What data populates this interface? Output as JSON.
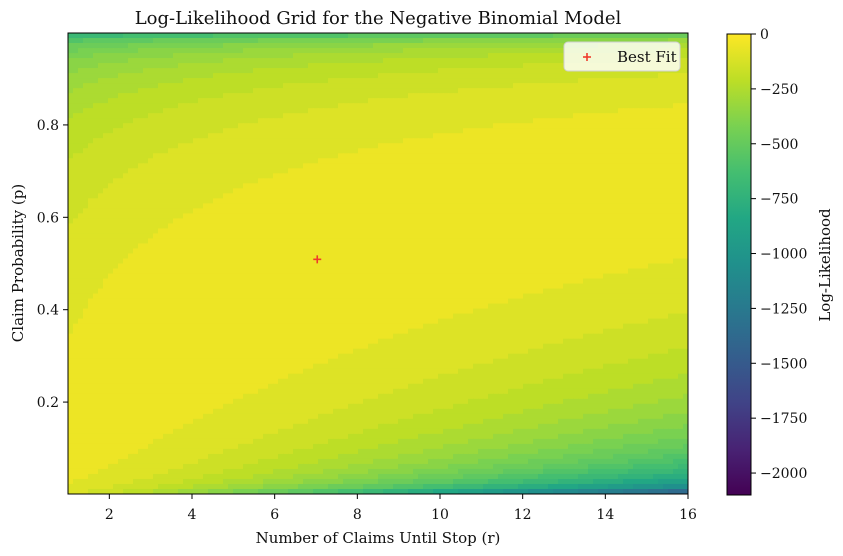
{
  "chart_data": {
    "type": "heatmap",
    "title": "Log-Likelihood Grid for the Negative Binomial Model",
    "xlabel": "Number of Claims Until Stop (r)",
    "ylabel": "Claim Probability (p)",
    "colorbar_label": "Log-Likelihood",
    "xlim": [
      1,
      16
    ],
    "ylim": [
      0.001,
      0.999
    ],
    "x_ticks": [
      2,
      4,
      6,
      8,
      10,
      12,
      14,
      16
    ],
    "x_tick_labels": [
      "2",
      "4",
      "6",
      "8",
      "10",
      "12",
      "14",
      "16"
    ],
    "y_ticks": [
      0.2,
      0.4,
      0.6,
      0.8
    ],
    "y_tick_labels": [
      "0.2",
      "0.4",
      "0.6",
      "0.8"
    ],
    "colorbar": {
      "min": -2100,
      "max": 0,
      "ticks": [
        0,
        -250,
        -500,
        -750,
        -1000,
        -1250,
        -1500,
        -1750,
        -2000
      ],
      "tick_labels": [
        "0",
        "−250",
        "−500",
        "−750",
        "−1000",
        "−1250",
        "−1500",
        "−1750",
        "−2000"
      ]
    },
    "colormap": "viridis",
    "best_fit": {
      "name": "Best Fit",
      "r": 7.03,
      "p": 0.509,
      "marker": "+",
      "color": "#ef3b2c"
    },
    "legend_placement": "top-right",
    "grid": false,
    "contour_levels": 40
  }
}
